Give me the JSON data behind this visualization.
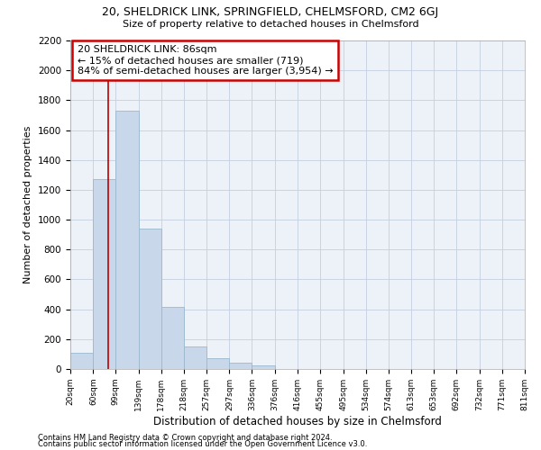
{
  "title1": "20, SHELDRICK LINK, SPRINGFIELD, CHELMSFORD, CM2 6GJ",
  "title2": "Size of property relative to detached houses in Chelmsford",
  "xlabel": "Distribution of detached houses by size in Chelmsford",
  "ylabel": "Number of detached properties",
  "footnote1": "Contains HM Land Registry data © Crown copyright and database right 2024.",
  "footnote2": "Contains public sector information licensed under the Open Government Licence v3.0.",
  "bin_labels": [
    "20sqm",
    "60sqm",
    "99sqm",
    "139sqm",
    "178sqm",
    "218sqm",
    "257sqm",
    "297sqm",
    "336sqm",
    "376sqm",
    "416sqm",
    "455sqm",
    "495sqm",
    "534sqm",
    "574sqm",
    "613sqm",
    "653sqm",
    "692sqm",
    "732sqm",
    "771sqm",
    "811sqm"
  ],
  "bar_values": [
    110,
    1270,
    1730,
    940,
    415,
    150,
    70,
    40,
    25,
    0,
    0,
    0,
    0,
    0,
    0,
    0,
    0,
    0,
    0,
    0,
    0
  ],
  "bar_color": "#c8d8ea",
  "bar_edge_color": "#99b8cc",
  "grid_color": "#c5cfe0",
  "bg_color": "#edf2f8",
  "property_line_x": 86,
  "property_line_color": "#bb0000",
  "annotation_text": "20 SHELDRICK LINK: 86sqm\n← 15% of detached houses are smaller (719)\n84% of semi-detached houses are larger (3,954) →",
  "annotation_box_color": "#cc0000",
  "ylim": [
    0,
    2200
  ],
  "yticks": [
    0,
    200,
    400,
    600,
    800,
    1000,
    1200,
    1400,
    1600,
    1800,
    2000,
    2200
  ],
  "bin_edges": [
    20,
    60,
    99,
    139,
    178,
    218,
    257,
    297,
    336,
    376,
    416,
    455,
    495,
    534,
    574,
    613,
    653,
    692,
    732,
    771,
    811
  ]
}
